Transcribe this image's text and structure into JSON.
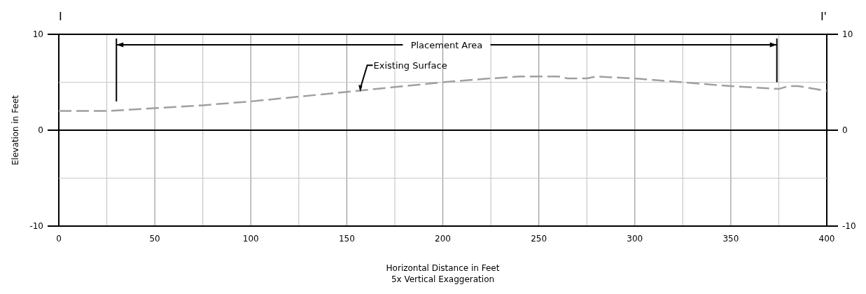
{
  "chart_data": {
    "type": "line",
    "xlabel": "Horizontal Distance in Feet",
    "ylabel": "Elevation in Feet",
    "annotations": [
      "5x Vertical Exaggeration",
      "I",
      "I'",
      {
        "text": "Placement Area",
        "x": 374,
        "y": 8.9
      },
      {
        "text": "Existing Surface",
        "x": 157,
        "y": 4.0
      }
    ],
    "x": [
      0,
      25,
      50,
      75,
      100,
      125,
      150,
      175,
      200,
      225,
      240,
      260,
      265,
      275,
      280,
      300,
      325,
      350,
      375,
      380,
      385,
      400
    ],
    "series": [
      {
        "color": "#a0a0a0",
        "values": [
          2,
          2,
          2.3,
          2.6,
          3.0,
          3.5,
          4.0,
          4.5,
          5.0,
          5.4,
          5.6,
          5.6,
          5.4,
          5.4,
          5.6,
          5.4,
          5.0,
          4.6,
          4.3,
          4.6,
          4.6,
          4.1
        ]
      }
    ],
    "ref_lines": [
      {
        "axis": "x",
        "value": 30,
        "color": "#000000"
      },
      {
        "axis": "x",
        "value": 374,
        "color": "#000000"
      }
    ],
    "xlim": [
      0,
      400
    ],
    "xticks": [
      0,
      {
        "value": 25,
        "label": null
      },
      50,
      {
        "value": 75,
        "label": null
      },
      100,
      {
        "value": 125,
        "label": null
      },
      150,
      {
        "value": 175,
        "label": null
      },
      200,
      {
        "value": 225,
        "label": null
      },
      250,
      {
        "value": 275,
        "label": null
      },
      300,
      {
        "value": 325,
        "label": null
      },
      350,
      {
        "value": 375,
        "label": null
      },
      400
    ],
    "ylim": [
      -10,
      10
    ],
    "yticks": [
      -10,
      {
        "value": -5,
        "label": null
      },
      0,
      {
        "value": 5,
        "label": null
      },
      10
    ],
    "y2lim": [
      -10,
      10
    ],
    "y2ticks": [
      -10,
      {
        "value": -5,
        "label": null
      },
      0,
      {
        "value": 5,
        "label": null
      },
      10
    ],
    "grid": true,
    "marker": "none",
    "line_style": "dashed"
  }
}
